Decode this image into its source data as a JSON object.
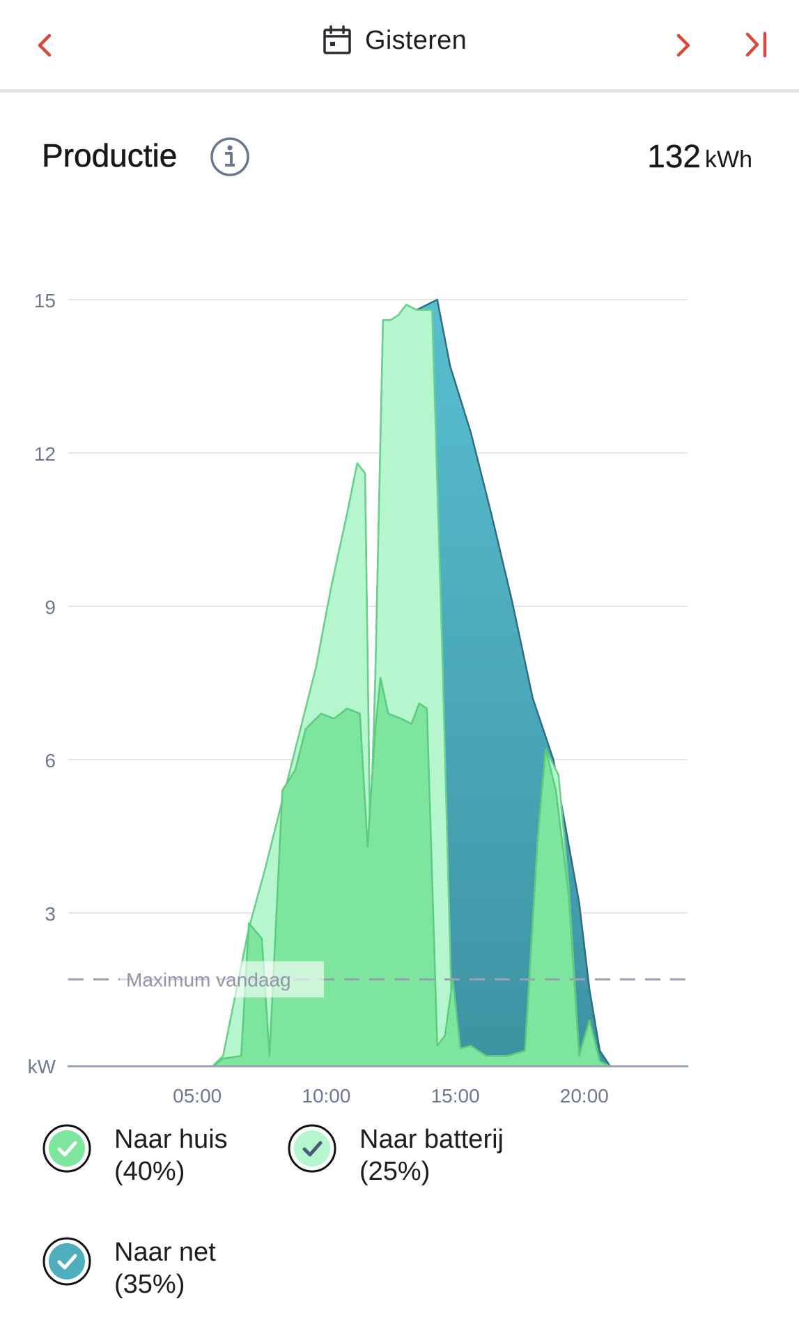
{
  "header": {
    "date_label": "Gisteren",
    "accent_color": "#d9483b"
  },
  "summary": {
    "title": "Productie",
    "total_value": "132",
    "total_unit": "kWh"
  },
  "chart_data": {
    "type": "area",
    "y_unit_label": "kW",
    "y_ticks": [
      "15",
      "12",
      "9",
      "6",
      "3"
    ],
    "x_ticks": [
      "05:00",
      "10:00",
      "15:00",
      "20:00"
    ],
    "ylim": [
      0,
      15
    ],
    "xlim_hours": [
      0,
      24
    ],
    "grid": true,
    "reference_line": {
      "label": "Maximum vandaag",
      "value": 1.7
    },
    "series": [
      {
        "name": "Naar net",
        "color": "#4eaebd",
        "points": [
          [
            0,
            0
          ],
          [
            5.6,
            0
          ],
          [
            6,
            0.2
          ],
          [
            7,
            2.7
          ],
          [
            7.6,
            3.8
          ],
          [
            8.3,
            5.2
          ],
          [
            9,
            6.6
          ],
          [
            9.6,
            7.8
          ],
          [
            10.2,
            9.4
          ],
          [
            10.8,
            10.8
          ],
          [
            11.2,
            11.8
          ],
          [
            11.5,
            11.6
          ],
          [
            11.7,
            4.3
          ],
          [
            11.9,
            7.6
          ],
          [
            12.2,
            14.6
          ],
          [
            12.5,
            14.6
          ],
          [
            12.8,
            14.7
          ],
          [
            13.1,
            14.9
          ],
          [
            13.5,
            14.8
          ],
          [
            14.3,
            15.0
          ],
          [
            14.8,
            13.7
          ],
          [
            15.6,
            12.4
          ],
          [
            16.4,
            10.8
          ],
          [
            17.2,
            9.1
          ],
          [
            18,
            7.2
          ],
          [
            18.8,
            6.0
          ],
          [
            19.3,
            4.6
          ],
          [
            19.8,
            3.2
          ],
          [
            20.2,
            1.5
          ],
          [
            20.6,
            0.3
          ],
          [
            21,
            0
          ],
          [
            24,
            0
          ]
        ]
      },
      {
        "name": "Naar batterij",
        "color": "#b5f6cf",
        "points": [
          [
            0,
            0
          ],
          [
            5.6,
            0
          ],
          [
            6,
            0.2
          ],
          [
            7,
            2.7
          ],
          [
            7.6,
            3.8
          ],
          [
            8.3,
            5.2
          ],
          [
            9,
            6.6
          ],
          [
            9.6,
            7.8
          ],
          [
            10.2,
            9.4
          ],
          [
            10.8,
            10.8
          ],
          [
            11.2,
            11.8
          ],
          [
            11.5,
            11.6
          ],
          [
            11.7,
            4.3
          ],
          [
            11.9,
            7.6
          ],
          [
            12.2,
            14.6
          ],
          [
            12.5,
            14.6
          ],
          [
            12.8,
            14.7
          ],
          [
            13.1,
            14.9
          ],
          [
            13.5,
            14.8
          ],
          [
            14.1,
            14.8
          ],
          [
            14.5,
            8.0
          ],
          [
            14.9,
            0.35
          ],
          [
            15.2,
            0.35
          ],
          [
            15.6,
            0.3
          ],
          [
            16.2,
            0.2
          ],
          [
            17,
            0.2
          ],
          [
            17.7,
            0.3
          ],
          [
            18.2,
            4.5
          ],
          [
            18.5,
            6.2
          ],
          [
            19,
            5.7
          ],
          [
            19.4,
            3.5
          ],
          [
            19.8,
            0.2
          ],
          [
            20.2,
            0.9
          ],
          [
            20.6,
            0.1
          ],
          [
            21,
            0
          ],
          [
            24,
            0
          ]
        ]
      },
      {
        "name": "Naar huis",
        "color": "#7de59d",
        "points": [
          [
            0,
            0
          ],
          [
            5.6,
            0
          ],
          [
            6,
            0.15
          ],
          [
            6.7,
            0.2
          ],
          [
            7,
            2.8
          ],
          [
            7.5,
            2.5
          ],
          [
            7.8,
            0.2
          ],
          [
            8.3,
            5.4
          ],
          [
            8.8,
            5.8
          ],
          [
            9.2,
            6.6
          ],
          [
            9.8,
            6.9
          ],
          [
            10.3,
            6.8
          ],
          [
            10.8,
            7.0
          ],
          [
            11.3,
            6.9
          ],
          [
            11.6,
            4.3
          ],
          [
            11.9,
            6.6
          ],
          [
            12.1,
            7.6
          ],
          [
            12.4,
            6.9
          ],
          [
            12.9,
            6.8
          ],
          [
            13.3,
            6.7
          ],
          [
            13.6,
            7.1
          ],
          [
            13.9,
            7.0
          ],
          [
            14.3,
            0.4
          ],
          [
            14.6,
            0.6
          ],
          [
            14.9,
            1.7
          ],
          [
            15.2,
            0.35
          ],
          [
            15.6,
            0.4
          ],
          [
            16.2,
            0.2
          ],
          [
            17,
            0.2
          ],
          [
            17.7,
            0.3
          ],
          [
            18.2,
            4.5
          ],
          [
            18.5,
            6.2
          ],
          [
            18.9,
            5.4
          ],
          [
            19.4,
            3.3
          ],
          [
            19.8,
            0.2
          ],
          [
            20.2,
            0.9
          ],
          [
            20.6,
            0.1
          ],
          [
            21,
            0
          ],
          [
            24,
            0
          ]
        ]
      }
    ]
  },
  "legend": [
    {
      "label": "Naar huis",
      "percent": "(40%)",
      "fill": "#7de59d",
      "check_color": "#ffffff"
    },
    {
      "label": "Naar batterij",
      "percent": "(25%)",
      "fill": "#b5f6cf",
      "check_color": "#4a5a78"
    },
    {
      "label": "Naar net",
      "percent": "(35%)",
      "fill": "#4eaebd",
      "check_color": "#ffffff"
    }
  ]
}
